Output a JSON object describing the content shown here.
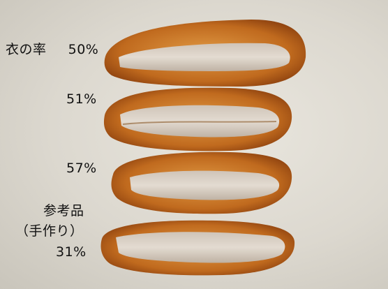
{
  "labels": {
    "ratio_title": "衣の率",
    "cutlet1_pct": "50%",
    "cutlet2_pct": "51%",
    "cutlet3_pct": "57%",
    "reference_line1": "参考品",
    "reference_line2": "（手作り）",
    "reference_pct": "31%"
  },
  "colors": {
    "background": "#dcd8cf",
    "crust_dark": "#9a4a12",
    "crust_light": "#d88b32",
    "meat": "#d9cfc3",
    "meat_shadow": "#b8aa9b"
  }
}
